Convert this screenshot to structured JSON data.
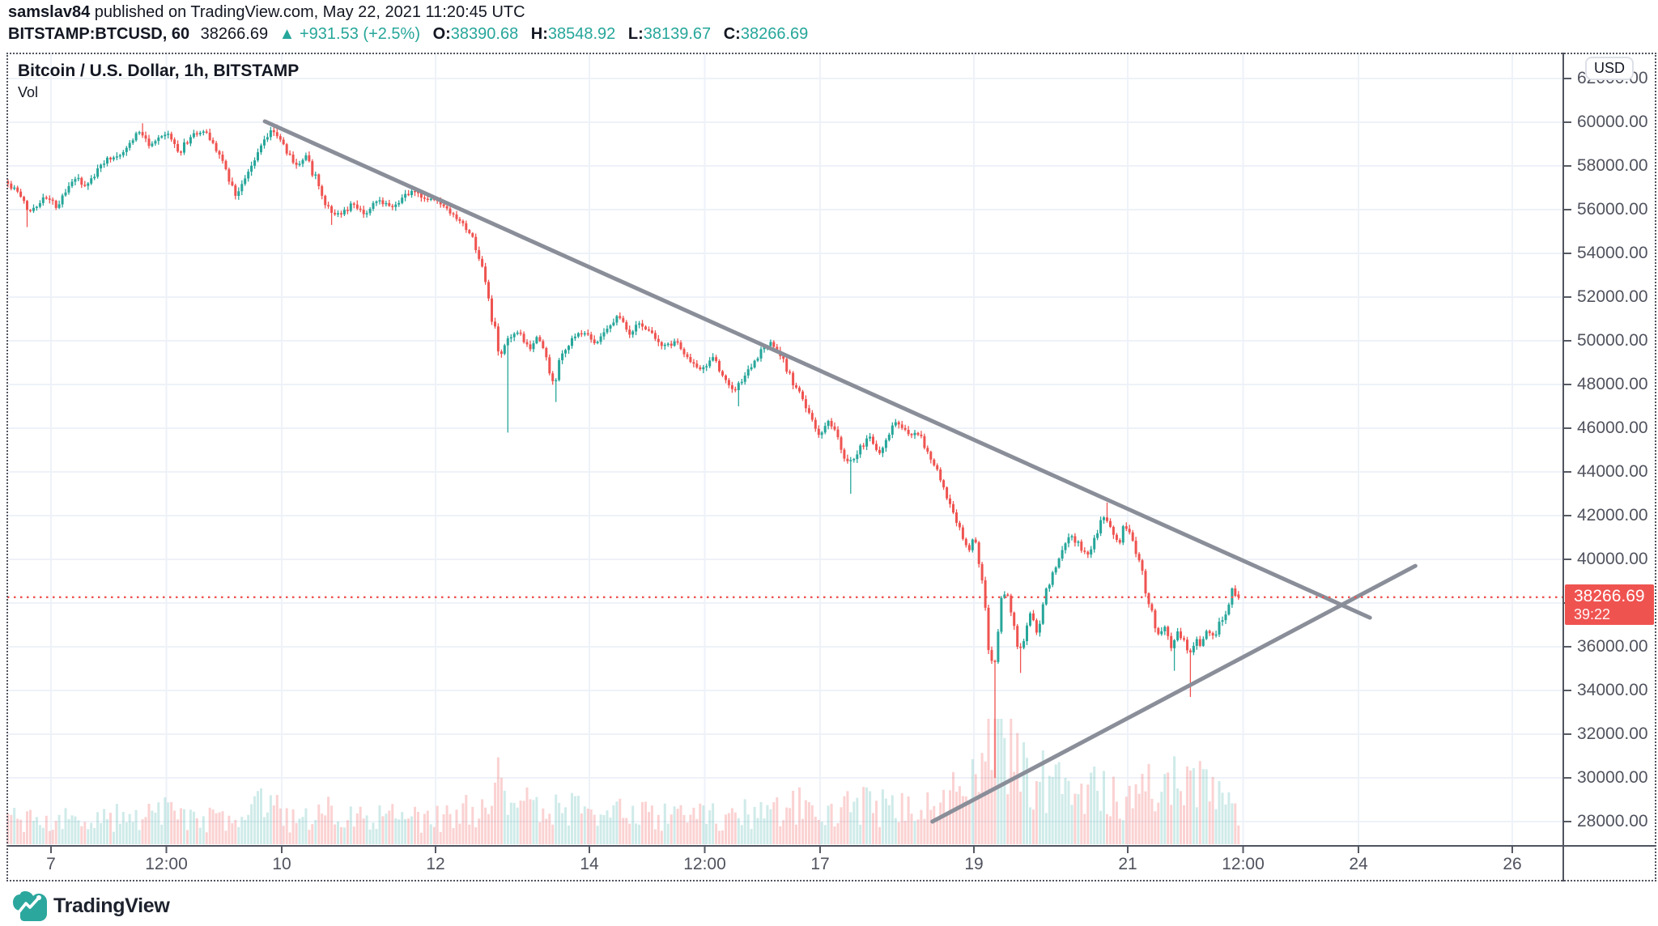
{
  "header": {
    "username": "samslav84",
    "published_text": " published on TradingView.com, May 22, 2021 11:20:45 UTC",
    "symbol_bold": "BITSTAMP:BTCUSD, 60",
    "last_price": "38266.69",
    "change_arrow": "▲",
    "change_text": "+931.53 (+2.5%)",
    "ohlc": [
      {
        "label": "O:",
        "value": "38390.68"
      },
      {
        "label": "H:",
        "value": "38548.92"
      },
      {
        "label": "L:",
        "value": "38139.67"
      },
      {
        "label": "C:",
        "value": "38266.69"
      }
    ]
  },
  "chart": {
    "legend_title": "Bitcoin / U.S. Dollar, 1h, BITSTAMP",
    "legend_vol": "Vol",
    "usd_badge": "USD",
    "price_tag": {
      "price": "38266.69",
      "countdown": "39:22"
    }
  },
  "logo": {
    "text": "TradingView"
  },
  "chart_data": {
    "type": "candlestick",
    "symbol": "BITSTAMP:BTCUSD",
    "interval_minutes": 60,
    "title": "Bitcoin / U.S. Dollar, 1h, BITSTAMP",
    "current_price": 38266.69,
    "last_candle": {
      "open": 38390.68,
      "high": 38548.92,
      "low": 38139.67,
      "close": 38266.69
    },
    "y_axis": {
      "min": 28000,
      "max": 62000,
      "tick_step": 2000,
      "ticks": [
        "62000.00",
        "60000.00",
        "58000.00",
        "56000.00",
        "54000.00",
        "52000.00",
        "50000.00",
        "48000.00",
        "46000.00",
        "44000.00",
        "42000.00",
        "40000.00",
        "38000.00",
        "36000.00",
        "34000.00",
        "32000.00",
        "30000.00",
        "28000.00"
      ]
    },
    "x_axis": {
      "note": "day 0 = May 7 2021 00:00 UTC",
      "ticks": [
        {
          "label": "7",
          "day": 0
        },
        {
          "label": "12:00",
          "day": 1.5
        },
        {
          "label": "10",
          "day": 3
        },
        {
          "label": "12",
          "day": 5
        },
        {
          "label": "14",
          "day": 7
        },
        {
          "label": "12:00",
          "day": 8.5
        },
        {
          "label": "17",
          "day": 10
        },
        {
          "label": "19",
          "day": 12
        },
        {
          "label": "21",
          "day": 14
        },
        {
          "label": "12:00",
          "day": 15.5
        },
        {
          "label": "24",
          "day": 17
        },
        {
          "label": "26",
          "day": 19
        }
      ]
    },
    "bars_start_day": -0.56,
    "bars_end_day": 15.46,
    "seed": 42,
    "price_path": [
      [
        -0.56,
        57300
      ],
      [
        -0.4,
        56800
      ],
      [
        -0.24,
        55900
      ],
      [
        -0.03,
        56600
      ],
      [
        0.13,
        56100
      ],
      [
        0.34,
        57500
      ],
      [
        0.5,
        57000
      ],
      [
        0.71,
        58200
      ],
      [
        0.97,
        58600
      ],
      [
        1.18,
        59600
      ],
      [
        1.34,
        58900
      ],
      [
        1.55,
        59500
      ],
      [
        1.71,
        58600
      ],
      [
        1.86,
        59400
      ],
      [
        2.05,
        59600
      ],
      [
        2.18,
        58900
      ],
      [
        2.32,
        57800
      ],
      [
        2.44,
        56700
      ],
      [
        2.6,
        57600
      ],
      [
        2.76,
        58900
      ],
      [
        2.92,
        59700
      ],
      [
        3.07,
        58900
      ],
      [
        3.23,
        58000
      ],
      [
        3.36,
        58500
      ],
      [
        3.5,
        57200
      ],
      [
        3.65,
        56000
      ],
      [
        3.81,
        55700
      ],
      [
        3.97,
        56300
      ],
      [
        4.13,
        55800
      ],
      [
        4.28,
        56400
      ],
      [
        4.5,
        56200
      ],
      [
        4.71,
        56900
      ],
      [
        4.92,
        56500
      ],
      [
        5.07,
        56400
      ],
      [
        5.23,
        55800
      ],
      [
        5.39,
        55300
      ],
      [
        5.55,
        54500
      ],
      [
        5.67,
        53000
      ],
      [
        5.78,
        51000
      ],
      [
        5.88,
        49200
      ],
      [
        5.99,
        50000
      ],
      [
        6.13,
        50400
      ],
      [
        6.26,
        49500
      ],
      [
        6.37,
        50300
      ],
      [
        6.47,
        49300
      ],
      [
        6.58,
        47900
      ],
      [
        6.68,
        49300
      ],
      [
        6.81,
        50100
      ],
      [
        6.97,
        50400
      ],
      [
        7.11,
        49900
      ],
      [
        7.25,
        50500
      ],
      [
        7.42,
        51200
      ],
      [
        7.57,
        50400
      ],
      [
        7.71,
        50800
      ],
      [
        7.86,
        50300
      ],
      [
        8.02,
        49700
      ],
      [
        8.18,
        50000
      ],
      [
        8.34,
        49100
      ],
      [
        8.5,
        48600
      ],
      [
        8.65,
        49300
      ],
      [
        8.79,
        48200
      ],
      [
        8.94,
        47700
      ],
      [
        9.11,
        48600
      ],
      [
        9.25,
        49400
      ],
      [
        9.39,
        49900
      ],
      [
        9.53,
        49300
      ],
      [
        9.65,
        48400
      ],
      [
        9.78,
        47500
      ],
      [
        9.92,
        46600
      ],
      [
        10.02,
        45600
      ],
      [
        10.16,
        46400
      ],
      [
        10.28,
        45400
      ],
      [
        10.41,
        44300
      ],
      [
        10.55,
        45000
      ],
      [
        10.68,
        45600
      ],
      [
        10.81,
        44900
      ],
      [
        10.94,
        45800
      ],
      [
        11.04,
        46300
      ],
      [
        11.17,
        45700
      ],
      [
        11.3,
        45900
      ],
      [
        11.42,
        45000
      ],
      [
        11.53,
        44200
      ],
      [
        11.65,
        43300
      ],
      [
        11.76,
        42300
      ],
      [
        11.88,
        41200
      ],
      [
        11.97,
        40400
      ],
      [
        12.05,
        41000
      ],
      [
        12.12,
        39800
      ],
      [
        12.2,
        37500
      ],
      [
        12.26,
        35000
      ],
      [
        12.32,
        35500
      ],
      [
        12.39,
        37800
      ],
      [
        12.47,
        38500
      ],
      [
        12.56,
        37000
      ],
      [
        12.62,
        35600
      ],
      [
        12.71,
        36700
      ],
      [
        12.79,
        37600
      ],
      [
        12.87,
        36700
      ],
      [
        12.97,
        38500
      ],
      [
        13.07,
        39500
      ],
      [
        13.18,
        40300
      ],
      [
        13.28,
        41200
      ],
      [
        13.39,
        40700
      ],
      [
        13.5,
        40100
      ],
      [
        13.62,
        41100
      ],
      [
        13.74,
        42000
      ],
      [
        13.84,
        41200
      ],
      [
        13.93,
        40700
      ],
      [
        14.01,
        41600
      ],
      [
        14.1,
        40900
      ],
      [
        14.18,
        40100
      ],
      [
        14.26,
        38900
      ],
      [
        14.35,
        37600
      ],
      [
        14.43,
        36600
      ],
      [
        14.52,
        36900
      ],
      [
        14.6,
        36000
      ],
      [
        14.68,
        36800
      ],
      [
        14.77,
        36300
      ],
      [
        14.83,
        35600
      ],
      [
        14.92,
        36400
      ],
      [
        15.0,
        36100
      ],
      [
        15.08,
        36700
      ],
      [
        15.17,
        36500
      ],
      [
        15.25,
        37200
      ],
      [
        15.34,
        37700
      ],
      [
        15.4,
        38450
      ],
      [
        15.46,
        38267
      ]
    ],
    "wick_events": [
      {
        "day": -0.3,
        "side": "low",
        "price": 55200
      },
      {
        "day": 1.18,
        "side": "high",
        "price": 59950
      },
      {
        "day": 2.92,
        "side": "high",
        "price": 59900
      },
      {
        "day": 3.65,
        "side": "low",
        "price": 55300
      },
      {
        "day": 5.95,
        "side": "low",
        "price": 45800
      },
      {
        "day": 6.58,
        "side": "low",
        "price": 47200
      },
      {
        "day": 8.94,
        "side": "low",
        "price": 47000
      },
      {
        "day": 10.41,
        "side": "low",
        "price": 43000
      },
      {
        "day": 12.28,
        "side": "low",
        "price": 30000
      },
      {
        "day": 12.62,
        "side": "low",
        "price": 34800
      },
      {
        "day": 13.74,
        "side": "high",
        "price": 42600
      },
      {
        "day": 14.6,
        "side": "low",
        "price": 34900
      },
      {
        "day": 14.83,
        "side": "low",
        "price": 33700
      }
    ],
    "volume_profile": [
      [
        -0.56,
        32
      ],
      [
        0.39,
        28
      ],
      [
        1.44,
        38
      ],
      [
        2.5,
        28
      ],
      [
        2.78,
        55
      ],
      [
        3.1,
        30
      ],
      [
        3.76,
        42
      ],
      [
        4.92,
        28
      ],
      [
        5.65,
        50
      ],
      [
        5.88,
        85
      ],
      [
        6.13,
        50
      ],
      [
        6.71,
        42
      ],
      [
        7.55,
        36
      ],
      [
        8.28,
        32
      ],
      [
        9.34,
        38
      ],
      [
        9.97,
        50
      ],
      [
        10.49,
        46
      ],
      [
        11.44,
        42
      ],
      [
        12.02,
        80
      ],
      [
        12.26,
        148
      ],
      [
        12.55,
        105
      ],
      [
        13.02,
        65
      ],
      [
        13.44,
        75
      ],
      [
        13.78,
        55
      ],
      [
        14.18,
        58
      ],
      [
        14.57,
        92
      ],
      [
        14.92,
        68
      ],
      [
        15.25,
        50
      ],
      [
        15.46,
        40
      ]
    ],
    "trendlines": [
      {
        "name": "descending-resistance",
        "from": {
          "day": 2.78,
          "price": 60040
        },
        "to": {
          "day": 17.15,
          "price": 37330
        }
      },
      {
        "name": "ascending-support",
        "from": {
          "day": 11.46,
          "price": 28000
        },
        "to": {
          "day": 17.74,
          "price": 39700
        }
      }
    ],
    "colors": {
      "up": "#26a69a",
      "down": "#ef5350",
      "grid": "#eef2f8",
      "trendline": "#8a8e99",
      "price_line": "#ef5350",
      "axis_text": "#50535e",
      "tag_bg": "#ef5350"
    }
  }
}
